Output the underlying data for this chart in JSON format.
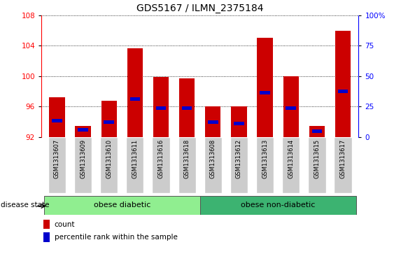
{
  "title": "GDS5167 / ILMN_2375184",
  "samples": [
    "GSM1313607",
    "GSM1313609",
    "GSM1313610",
    "GSM1313611",
    "GSM1313616",
    "GSM1313618",
    "GSM1313608",
    "GSM1313612",
    "GSM1313613",
    "GSM1313614",
    "GSM1313615",
    "GSM1313617"
  ],
  "count_values": [
    97.2,
    93.5,
    96.8,
    103.7,
    99.9,
    99.7,
    96.0,
    96.0,
    105.0,
    100.0,
    93.5,
    106.0
  ],
  "percentile_values": [
    94.2,
    93.0,
    94.0,
    97.0,
    95.8,
    95.8,
    94.0,
    93.8,
    97.8,
    95.8,
    92.8,
    98.0
  ],
  "ymin": 92,
  "ymax": 108,
  "yticks": [
    92,
    96,
    100,
    104,
    108
  ],
  "y2min": 0,
  "y2max": 100,
  "y2ticks": [
    0,
    25,
    50,
    75,
    100
  ],
  "bar_color": "#cc0000",
  "percentile_color": "#0000cc",
  "bar_width": 0.6,
  "group1_label": "obese diabetic",
  "group2_label": "obese non-diabetic",
  "disease_state_label": "disease state",
  "legend_count_label": "count",
  "legend_percentile_label": "percentile rank within the sample",
  "group1_color": "#90EE90",
  "group2_color": "#3CB371",
  "tick_bg_color": "#cccccc",
  "n_group1": 6,
  "n_group2": 6
}
